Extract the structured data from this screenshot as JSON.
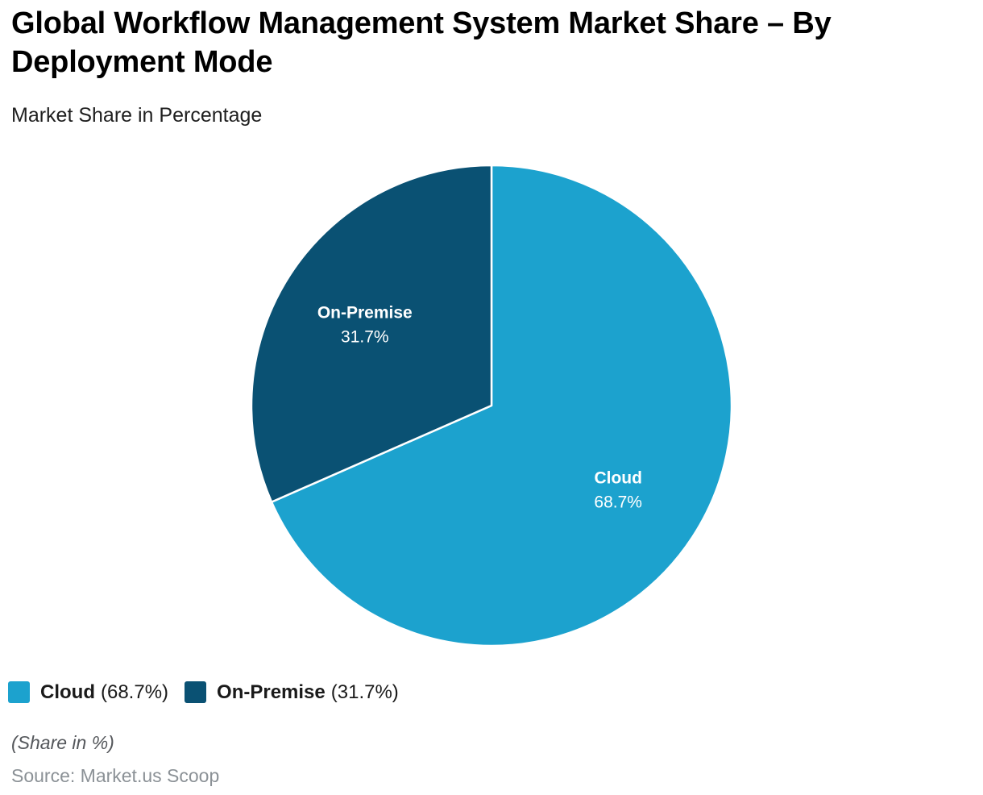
{
  "header": {
    "title": "Global Workflow Management System Market Share – By Deployment Mode",
    "subtitle": "Market Share in Percentage"
  },
  "chart_data": {
    "type": "pie",
    "title": "Global Workflow Management System Market Share – By Deployment Mode",
    "unit": "%",
    "start_angle_deg": 0,
    "direction": "clockwise",
    "slice_stroke_color": "#ffffff",
    "label_position": "inside",
    "legend_position": "bottom-left",
    "slices": [
      {
        "label": "Cloud",
        "value": 68.7,
        "display": "68.7%",
        "color": "#1CA2CE"
      },
      {
        "label": "On-Premise",
        "value": 31.7,
        "display": "31.7%",
        "color": "#0A5173"
      }
    ]
  },
  "legend": {
    "items": [
      {
        "name": "Cloud",
        "detail": "(68.7%)",
        "color": "#1CA2CE"
      },
      {
        "name": "On-Premise",
        "detail": "(31.7%)",
        "color": "#0A5173"
      }
    ]
  },
  "footer": {
    "note": "(Share in %)",
    "source": "Source: Market.us Scoop"
  }
}
